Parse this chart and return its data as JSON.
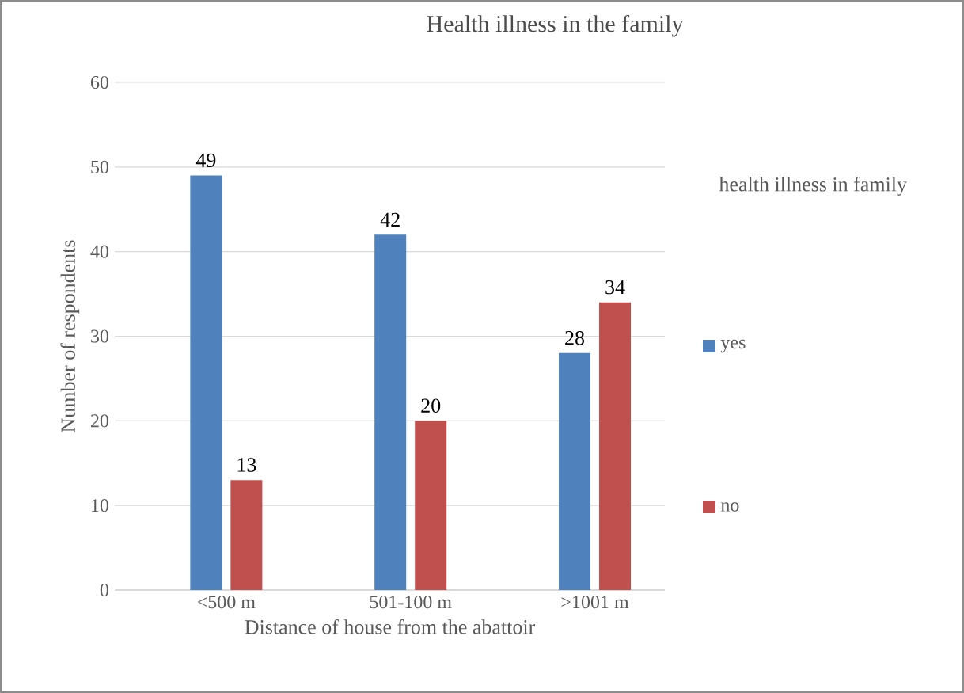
{
  "chart_data": {
    "type": "bar",
    "title": "Health illness in the family",
    "xlabel": "Distance of house from the abattoir",
    "ylabel": "Number of respondents",
    "legend_title": "health illness in family",
    "categories": [
      "<500 m",
      "501-100 m",
      ">1001 m"
    ],
    "series": [
      {
        "name": "yes",
        "color": "#4f81bd",
        "values": [
          49,
          42,
          28
        ]
      },
      {
        "name": "no",
        "color": "#c0504d",
        "values": [
          13,
          20,
          34
        ]
      }
    ],
    "ylim": [
      0,
      60
    ],
    "yticks": [
      0,
      10,
      20,
      30,
      40,
      50,
      60
    ],
    "grid": "y",
    "legend": "right",
    "data_labels": true
  }
}
